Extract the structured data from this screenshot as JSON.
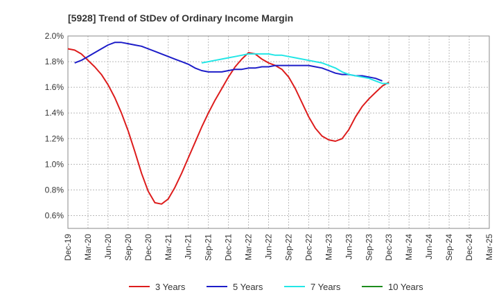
{
  "chart_data": {
    "type": "line",
    "title": "[5928]  Trend of StDev of Ordinary Income Margin",
    "xlabel": "",
    "ylabel": "",
    "ylim": [
      0.5,
      2.0
    ],
    "yticks": [
      "2.0%",
      "1.8%",
      "1.6%",
      "1.4%",
      "1.2%",
      "1.0%",
      "0.8%",
      "0.6%"
    ],
    "ytick_values": [
      2.0,
      1.8,
      1.6,
      1.4,
      1.2,
      1.0,
      0.8,
      0.6
    ],
    "x_ticks": [
      "Dec-19",
      "Mar-20",
      "Jun-20",
      "Sep-20",
      "Dec-20",
      "Mar-21",
      "Jun-21",
      "Sep-21",
      "Dec-21",
      "Mar-22",
      "Jun-22",
      "Sep-22",
      "Dec-22",
      "Mar-23",
      "Jun-23",
      "Sep-23",
      "Dec-23",
      "Mar-24",
      "Jun-24",
      "Sep-24",
      "Dec-24",
      "Mar-25"
    ],
    "grid": true,
    "legend_position": "bottom",
    "series": [
      {
        "name": "3 Years",
        "color": "#dd1c1c",
        "points": [
          [
            0,
            1.9
          ],
          [
            1,
            1.89
          ],
          [
            2,
            1.86
          ],
          [
            3,
            1.81
          ],
          [
            4,
            1.76
          ],
          [
            5,
            1.7
          ],
          [
            6,
            1.62
          ],
          [
            7,
            1.52
          ],
          [
            8,
            1.4
          ],
          [
            9,
            1.26
          ],
          [
            10,
            1.1
          ],
          [
            11,
            0.93
          ],
          [
            12,
            0.79
          ],
          [
            13,
            0.7
          ],
          [
            14,
            0.69
          ],
          [
            15,
            0.73
          ],
          [
            16,
            0.82
          ],
          [
            17,
            0.93
          ],
          [
            18,
            1.05
          ],
          [
            19,
            1.17
          ],
          [
            20,
            1.29
          ],
          [
            21,
            1.4
          ],
          [
            22,
            1.5
          ],
          [
            23,
            1.59
          ],
          [
            24,
            1.68
          ],
          [
            25,
            1.76
          ],
          [
            26,
            1.82
          ],
          [
            27,
            1.87
          ],
          [
            28,
            1.86
          ],
          [
            29,
            1.82
          ],
          [
            30,
            1.79
          ],
          [
            31,
            1.77
          ],
          [
            32,
            1.74
          ],
          [
            33,
            1.68
          ],
          [
            34,
            1.59
          ],
          [
            35,
            1.48
          ],
          [
            36,
            1.37
          ],
          [
            37,
            1.28
          ],
          [
            38,
            1.22
          ],
          [
            39,
            1.19
          ],
          [
            40,
            1.18
          ],
          [
            41,
            1.2
          ],
          [
            42,
            1.27
          ],
          [
            43,
            1.37
          ],
          [
            44,
            1.45
          ],
          [
            45,
            1.51
          ],
          [
            46,
            1.56
          ],
          [
            47,
            1.61
          ],
          [
            48,
            1.64
          ]
        ]
      },
      {
        "name": "5 Years",
        "color": "#1c1cc8",
        "points": [
          [
            1,
            1.79
          ],
          [
            2,
            1.81
          ],
          [
            3,
            1.84
          ],
          [
            4,
            1.87
          ],
          [
            5,
            1.9
          ],
          [
            6,
            1.93
          ],
          [
            7,
            1.95
          ],
          [
            8,
            1.95
          ],
          [
            9,
            1.94
          ],
          [
            10,
            1.93
          ],
          [
            11,
            1.92
          ],
          [
            12,
            1.9
          ],
          [
            13,
            1.88
          ],
          [
            14,
            1.86
          ],
          [
            15,
            1.84
          ],
          [
            16,
            1.82
          ],
          [
            17,
            1.8
          ],
          [
            18,
            1.78
          ],
          [
            19,
            1.75
          ],
          [
            20,
            1.73
          ],
          [
            21,
            1.72
          ],
          [
            22,
            1.72
          ],
          [
            23,
            1.72
          ],
          [
            24,
            1.73
          ],
          [
            25,
            1.74
          ],
          [
            26,
            1.74
          ],
          [
            27,
            1.75
          ],
          [
            28,
            1.75
          ],
          [
            29,
            1.76
          ],
          [
            30,
            1.76
          ],
          [
            31,
            1.77
          ],
          [
            32,
            1.77
          ],
          [
            33,
            1.77
          ],
          [
            34,
            1.77
          ],
          [
            35,
            1.77
          ],
          [
            36,
            1.77
          ],
          [
            37,
            1.76
          ],
          [
            38,
            1.75
          ],
          [
            39,
            1.73
          ],
          [
            40,
            1.71
          ],
          [
            41,
            1.7
          ],
          [
            42,
            1.7
          ],
          [
            43,
            1.69
          ],
          [
            44,
            1.69
          ],
          [
            45,
            1.68
          ],
          [
            46,
            1.67
          ],
          [
            47,
            1.65
          ]
        ]
      },
      {
        "name": "7 Years",
        "color": "#22e6e6",
        "points": [
          [
            20,
            1.79
          ],
          [
            21,
            1.8
          ],
          [
            22,
            1.81
          ],
          [
            23,
            1.82
          ],
          [
            24,
            1.83
          ],
          [
            25,
            1.84
          ],
          [
            26,
            1.85
          ],
          [
            27,
            1.86
          ],
          [
            28,
            1.86
          ],
          [
            29,
            1.86
          ],
          [
            30,
            1.86
          ],
          [
            31,
            1.85
          ],
          [
            32,
            1.85
          ],
          [
            33,
            1.84
          ],
          [
            34,
            1.83
          ],
          [
            35,
            1.82
          ],
          [
            36,
            1.81
          ],
          [
            37,
            1.8
          ],
          [
            38,
            1.79
          ],
          [
            39,
            1.77
          ],
          [
            40,
            1.75
          ],
          [
            41,
            1.72
          ],
          [
            42,
            1.7
          ],
          [
            43,
            1.69
          ],
          [
            44,
            1.68
          ],
          [
            45,
            1.67
          ],
          [
            46,
            1.65
          ],
          [
            47,
            1.63
          ],
          [
            48,
            1.63
          ]
        ]
      },
      {
        "name": "10 Years",
        "color": "#1c8c1c",
        "points": []
      }
    ]
  }
}
